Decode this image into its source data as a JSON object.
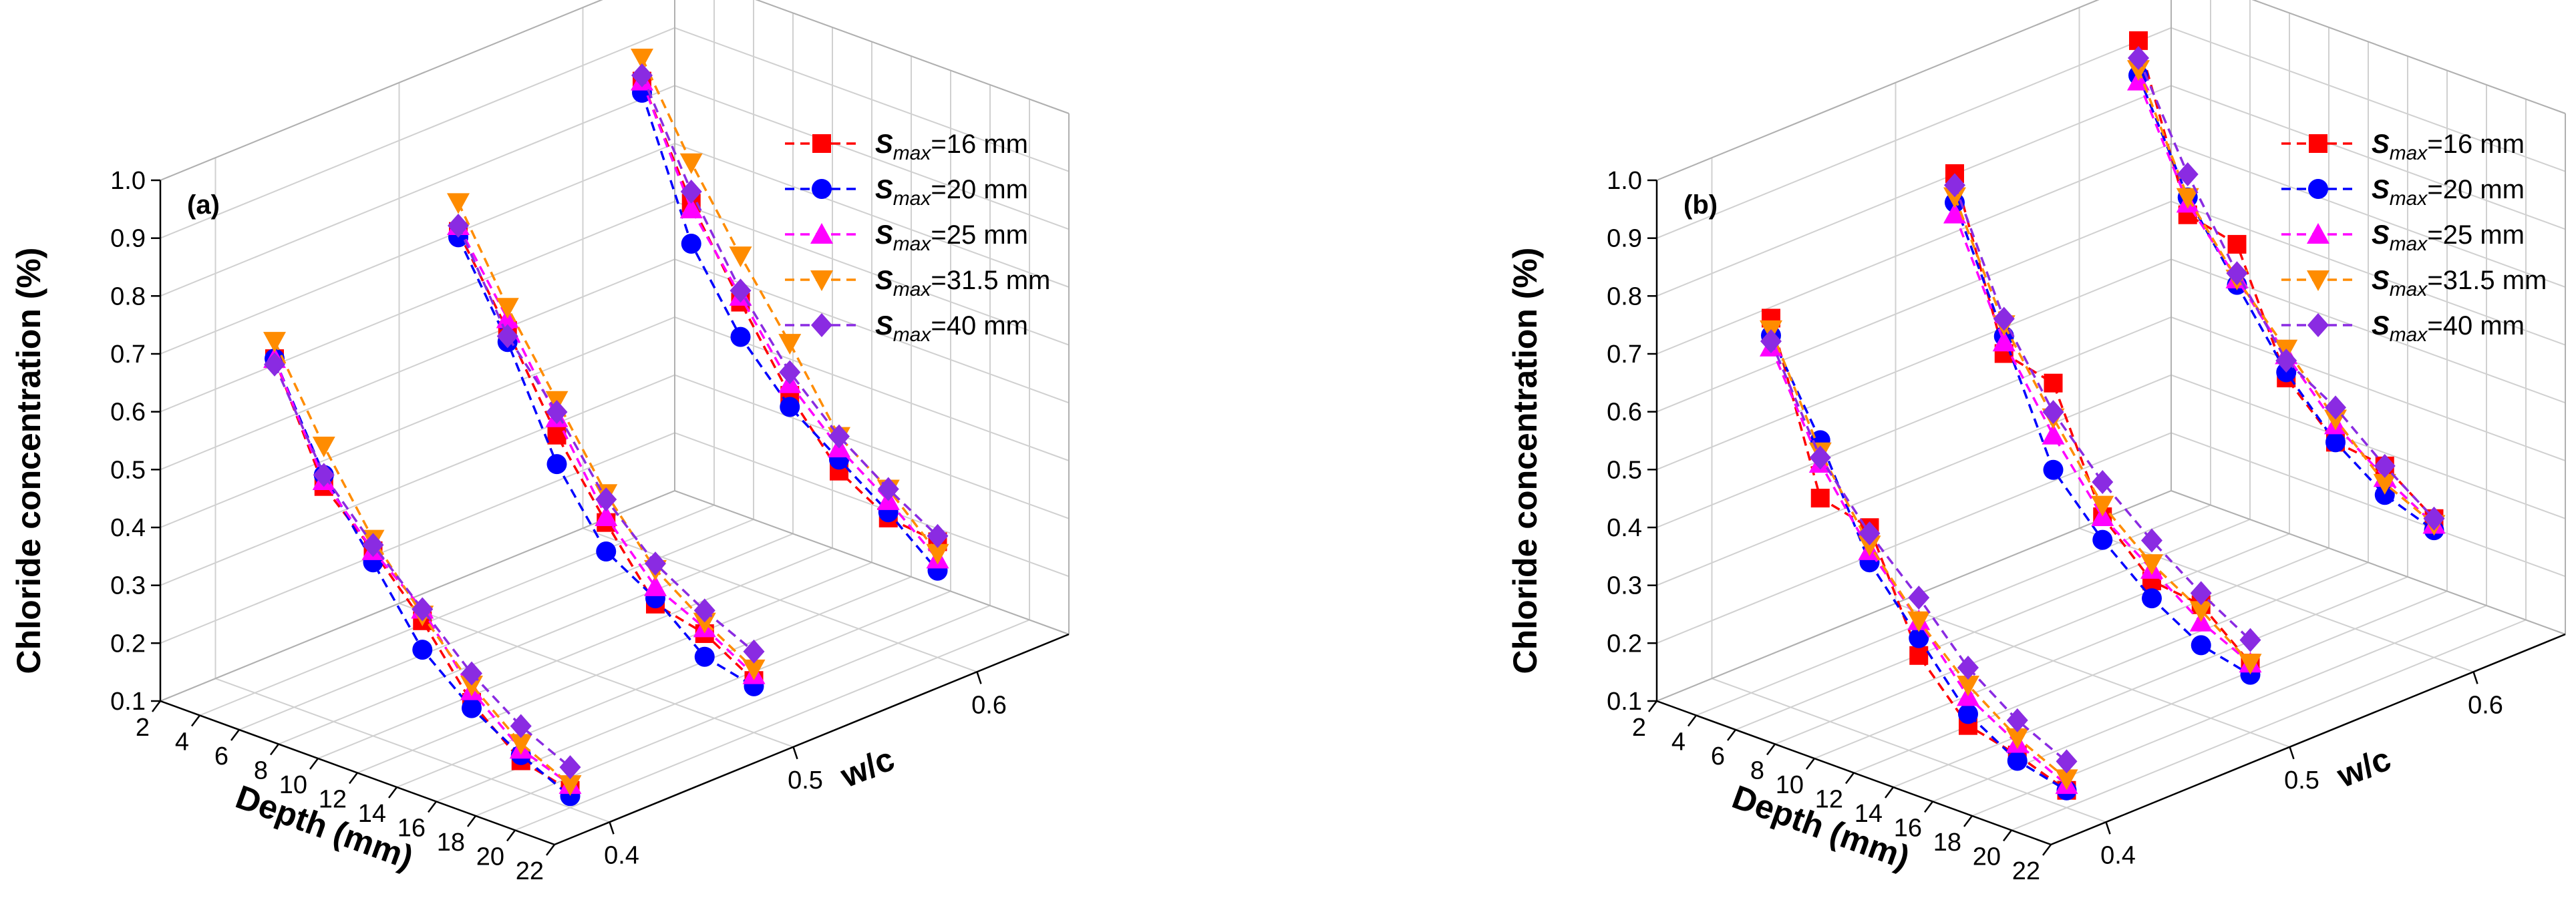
{
  "figure": {
    "panels": [
      "(a)",
      "(b)"
    ]
  },
  "chart_data": [
    {
      "type": "line3d",
      "panel_label": "(a)",
      "zlabel": "Chloride concentration (%)",
      "xlabel": "Depth (mm)",
      "ylabel": "w/c",
      "zlim": [
        0.1,
        1.0
      ],
      "zticks": [
        "0.1",
        "0.2",
        "0.3",
        "0.4",
        "0.5",
        "0.6",
        "0.7",
        "0.8",
        "0.9",
        "1.0"
      ],
      "xlim": [
        2,
        22
      ],
      "xticks": [
        "2",
        "4",
        "6",
        "8",
        "10",
        "12",
        "14",
        "16",
        "18",
        "20",
        "22"
      ],
      "ylim": [
        0.4,
        0.6
      ],
      "yticks": [
        "0.4",
        "0.5",
        "0.6"
      ],
      "legend_position": "top-right",
      "depths": [
        5,
        7.5,
        10,
        12.5,
        15,
        17.5,
        20
      ],
      "wc_levels": [
        0.4,
        0.5,
        0.6
      ],
      "series": [
        {
          "name": "=16 mm",
          "prefix": "S",
          "subscript": "max",
          "color": "#ff0000",
          "marker": "square",
          "values": {
            "0.4": [
              0.69,
              0.5,
              0.42,
              0.33,
              0.22,
              0.15,
              0.13
            ],
            "0.5": [
              0.78,
              0.64,
              0.49,
              0.37,
              0.26,
              0.24,
              0.19
            ],
            "0.6": [
              0.91,
              0.73,
              0.59,
              0.46,
              0.36,
              0.31,
              0.3
            ]
          }
        },
        {
          "name": "=20 mm",
          "prefix": "S",
          "subscript": "max",
          "color": "#0000ff",
          "marker": "circle",
          "values": {
            "0.4": [
              0.69,
              0.52,
              0.4,
              0.28,
              0.21,
              0.16,
              0.12
            ],
            "0.5": [
              0.77,
              0.62,
              0.44,
              0.32,
              0.27,
              0.2,
              0.18
            ],
            "0.6": [
              0.89,
              0.66,
              0.53,
              0.44,
              0.38,
              0.32,
              0.25
            ]
          }
        },
        {
          "name": "=25 mm",
          "prefix": "S",
          "subscript": "max",
          "color": "#ff00ff",
          "marker": "triangle-up",
          "values": {
            "0.4": [
              0.69,
              0.51,
              0.42,
              0.35,
              0.24,
              0.17,
              0.14
            ],
            "0.5": [
              0.79,
              0.66,
              0.52,
              0.38,
              0.29,
              0.25,
              0.2
            ],
            "0.6": [
              0.91,
              0.72,
              0.6,
              0.48,
              0.4,
              0.34,
              0.27
            ]
          }
        },
        {
          "name": "=31.5 mm",
          "prefix": "S",
          "subscript": "max",
          "color": "#ff8c00",
          "marker": "triangle-down",
          "values": {
            "0.4": [
              0.72,
              0.57,
              0.44,
              0.34,
              0.25,
              0.18,
              0.14
            ],
            "0.5": [
              0.83,
              0.68,
              0.55,
              0.42,
              0.32,
              0.26,
              0.21
            ],
            "0.6": [
              0.95,
              0.8,
              0.67,
              0.55,
              0.42,
              0.36,
              0.28
            ]
          }
        },
        {
          "name": "=40 mm",
          "prefix": "S",
          "subscript": "max",
          "color": "#8a2be2",
          "marker": "diamond",
          "values": {
            "0.4": [
              0.68,
              0.52,
              0.43,
              0.35,
              0.27,
              0.21,
              0.17
            ],
            "0.5": [
              0.79,
              0.63,
              0.53,
              0.41,
              0.33,
              0.28,
              0.24
            ],
            "0.6": [
              0.92,
              0.75,
              0.61,
              0.5,
              0.42,
              0.36,
              0.31
            ]
          }
        }
      ]
    },
    {
      "type": "line3d",
      "panel_label": "(b)",
      "zlabel": "Chloride concentration (%)",
      "xlabel": "Depth (mm)",
      "ylabel": "w/c",
      "zlim": [
        0.1,
        1.0
      ],
      "zticks": [
        "0.1",
        "0.2",
        "0.3",
        "0.4",
        "0.5",
        "0.6",
        "0.7",
        "0.8",
        "0.9",
        "1.0"
      ],
      "xlim": [
        2,
        22
      ],
      "xticks": [
        "2",
        "4",
        "6",
        "8",
        "10",
        "12",
        "14",
        "16",
        "18",
        "20",
        "22"
      ],
      "ylim": [
        0.4,
        0.6
      ],
      "yticks": [
        "0.4",
        "0.5",
        "0.6"
      ],
      "legend_position": "top-right",
      "depths": [
        5,
        7.5,
        10,
        12.5,
        15,
        17.5,
        20
      ],
      "wc_levels": [
        0.4,
        0.5,
        0.6
      ],
      "series": [
        {
          "name": "=16 mm",
          "prefix": "S",
          "subscript": "max",
          "color": "#ff0000",
          "marker": "square",
          "values": {
            "0.4": [
              0.76,
              0.48,
              0.46,
              0.27,
              0.18,
              0.16,
              0.13
            ],
            "0.5": [
              0.88,
              0.6,
              0.58,
              0.38,
              0.3,
              0.29,
              0.22
            ],
            "0.6": [
              0.98,
              0.71,
              0.69,
              0.49,
              0.41,
              0.4,
              0.34
            ]
          }
        },
        {
          "name": "=20 mm",
          "prefix": "S",
          "subscript": "max",
          "color": "#0000ff",
          "marker": "circle",
          "values": {
            "0.4": [
              0.73,
              0.58,
              0.4,
              0.3,
              0.2,
              0.15,
              0.13
            ],
            "0.5": [
              0.83,
              0.63,
              0.43,
              0.34,
              0.27,
              0.22,
              0.2
            ],
            "0.6": [
              0.92,
              0.74,
              0.62,
              0.5,
              0.41,
              0.35,
              0.32
            ]
          }
        },
        {
          "name": "=25 mm",
          "prefix": "S",
          "subscript": "max",
          "color": "#ff00ff",
          "marker": "triangle-up",
          "values": {
            "0.4": [
              0.71,
              0.54,
              0.42,
              0.33,
              0.23,
              0.18,
              0.14
            ],
            "0.5": [
              0.81,
              0.62,
              0.49,
              0.38,
              0.32,
              0.26,
              0.22
            ],
            "0.6": [
              0.91,
              0.73,
              0.63,
              0.53,
              0.44,
              0.38,
              0.33
            ]
          }
        },
        {
          "name": "=31.5 mm",
          "prefix": "S",
          "subscript": "max",
          "color": "#ff8c00",
          "marker": "triangle-down",
          "values": {
            "0.4": [
              0.74,
              0.56,
              0.43,
              0.33,
              0.25,
              0.19,
              0.15
            ],
            "0.5": [
              0.84,
              0.65,
              0.52,
              0.4,
              0.33,
              0.28,
              0.22
            ],
            "0.6": [
              0.93,
              0.74,
              0.63,
              0.54,
              0.45,
              0.37,
              0.33
            ]
          }
        },
        {
          "name": "=40 mm",
          "prefix": "S",
          "subscript": "max",
          "color": "#8a2be2",
          "marker": "diamond",
          "values": {
            "0.4": [
              0.72,
              0.55,
              0.45,
              0.37,
              0.28,
              0.22,
              0.18
            ],
            "0.5": [
              0.86,
              0.66,
              0.53,
              0.44,
              0.37,
              0.31,
              0.26
            ],
            "0.6": [
              0.95,
              0.78,
              0.64,
              0.52,
              0.47,
              0.4,
              0.34
            ]
          }
        }
      ]
    }
  ]
}
